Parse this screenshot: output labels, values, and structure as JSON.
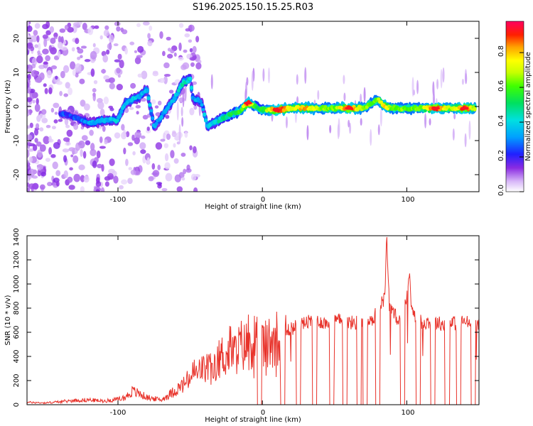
{
  "title": "S196.2025.150.15.25.R03",
  "chart_data": [
    {
      "type": "heatmap",
      "xlabel": "Height of straight line (km)",
      "ylabel": "Frequency (Hz)",
      "xlim": [
        -163,
        150
      ],
      "ylim": [
        -25,
        25
      ],
      "x_ticks": [
        -100,
        0,
        100
      ],
      "x_tick_labels": [
        "-100",
        "0",
        "100"
      ],
      "y_ticks": [
        -20,
        -10,
        0,
        10,
        20
      ],
      "y_tick_labels": [
        "-20",
        "-10",
        "0",
        "10",
        "20"
      ],
      "colorbar": {
        "label": "Normalized spectral amplitude",
        "range": [
          0,
          0.98
        ],
        "ticks": [
          0,
          0.2,
          0.4,
          0.6,
          0.8
        ],
        "tick_labels": [
          "0.0",
          "0.2",
          "0.4",
          "0.6",
          "0.8"
        ]
      },
      "ridge": {
        "x": [
          -140,
          -130,
          -120,
          -110,
          -100,
          -95,
          -90,
          -85,
          -80,
          -75,
          -70,
          -65,
          -60,
          -55,
          -50,
          -48,
          -45,
          -42,
          -38,
          -35,
          -30,
          -25,
          -20,
          -15,
          -10,
          -5,
          0,
          10,
          20,
          30,
          40,
          50,
          60,
          70,
          80,
          85,
          90,
          100,
          110,
          120,
          130,
          140,
          148
        ],
        "freq": [
          -2,
          -3,
          -5,
          -4,
          -4,
          1,
          2,
          3,
          5,
          -6,
          -3,
          0,
          3,
          7,
          8,
          2,
          2,
          1,
          -6,
          -5,
          -4,
          -3,
          -2,
          -1,
          1,
          0,
          -1,
          -1,
          -0.5,
          -0.5,
          -0.5,
          -0.5,
          -0.5,
          -0.5,
          2,
          0,
          -0.5,
          -0.5,
          -0.5,
          -0.5,
          -0.5,
          -0.5,
          -0.5
        ],
        "amplitude": [
          0.2,
          0.2,
          0.3,
          0.3,
          0.35,
          0.3,
          0.35,
          0.3,
          0.35,
          0.3,
          0.3,
          0.3,
          0.35,
          0.4,
          0.4,
          0.3,
          0.3,
          0.3,
          0.35,
          0.35,
          0.4,
          0.45,
          0.5,
          0.55,
          0.9,
          0.5,
          0.5,
          0.9,
          0.7,
          0.8,
          0.6,
          0.6,
          0.9,
          0.6,
          0.6,
          0.8,
          0.6,
          0.6,
          0.6,
          0.9,
          0.6,
          0.9,
          0.6
        ]
      }
    },
    {
      "type": "line",
      "xlabel": "Height of straight line (km)",
      "ylabel": "SNR (10 * v/v)",
      "xlim": [
        -163,
        150
      ],
      "ylim": [
        0,
        1400
      ],
      "x_ticks": [
        -100,
        0,
        100
      ],
      "x_tick_labels": [
        "-100",
        "0",
        "100"
      ],
      "y_ticks": [
        0,
        200,
        400,
        600,
        800,
        1000,
        1200,
        1400
      ],
      "y_tick_labels": [
        "0",
        "200",
        "400",
        "600",
        "800",
        "1000",
        "1200",
        "1400"
      ],
      "series": [
        {
          "name": "SNR",
          "color": "#e8322a",
          "x": [
            -163,
            -150,
            -140,
            -130,
            -120,
            -110,
            -100,
            -95,
            -90,
            -85,
            -80,
            -75,
            -70,
            -65,
            -60,
            -55,
            -50,
            -47,
            -45,
            -42,
            -40,
            -37,
            -35,
            -30,
            -27,
            -25,
            -22,
            -20,
            -17,
            -15,
            -12,
            -10,
            -7,
            -5,
            -2,
            0,
            3,
            5,
            8,
            10,
            13,
            15,
            18,
            20,
            25,
            30,
            35,
            40,
            45,
            50,
            55,
            60,
            65,
            70,
            75,
            78,
            80,
            83,
            85,
            86,
            88,
            90,
            95,
            100,
            102,
            103,
            105,
            110,
            115,
            120,
            125,
            130,
            135,
            140,
            145,
            150
          ],
          "values": [
            20,
            15,
            25,
            35,
            40,
            30,
            45,
            60,
            110,
            90,
            60,
            50,
            40,
            80,
            120,
            160,
            220,
            280,
            240,
            320,
            270,
            350,
            250,
            380,
            420,
            380,
            480,
            420,
            450,
            500,
            470,
            550,
            520,
            560,
            530,
            510,
            480,
            530,
            570,
            560,
            600,
            580,
            620,
            630,
            660,
            680,
            690,
            690,
            670,
            700,
            690,
            680,
            680,
            700,
            680,
            740,
            800,
            850,
            900,
            1400,
            820,
            760,
            700,
            870,
            1100,
            850,
            760,
            680,
            690,
            680,
            670,
            680,
            670,
            690,
            670,
            680
          ]
        }
      ],
      "dropouts_x": [
        -2,
        14,
        25,
        36,
        48,
        57,
        67,
        71,
        80,
        97,
        108,
        118,
        128,
        136,
        146
      ]
    }
  ]
}
